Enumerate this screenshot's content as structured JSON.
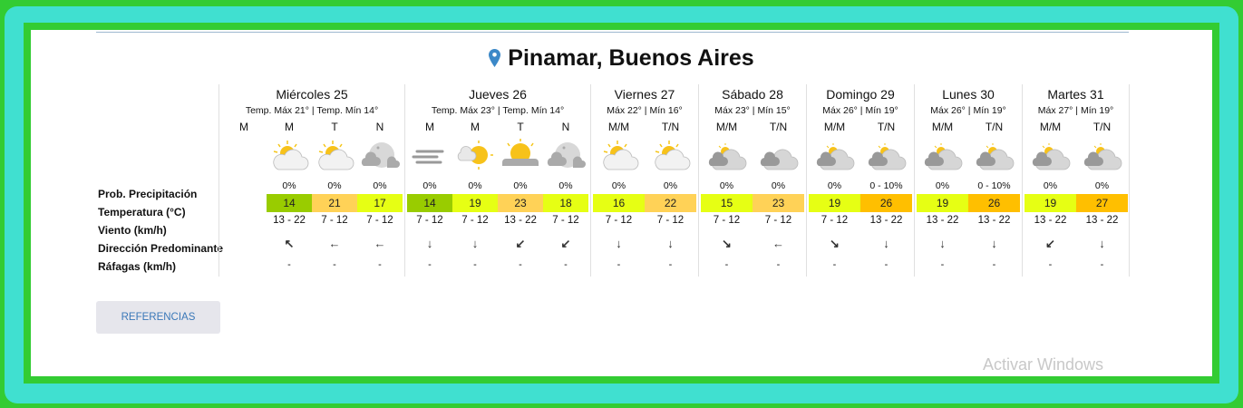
{
  "location": "Pinamar, Buenos Aires",
  "labels": {
    "precip": "Prob. Precipitación",
    "temp": "Temperatura (°C)",
    "wind": "Viento (km/h)",
    "dir": "Dirección Predominante",
    "gust": "Ráfagas (km/h)"
  },
  "colors": {
    "t14": "#99cc00",
    "t15_19": "#e6ff14",
    "t21_23": "#ffd257",
    "t26_27": "#ffbf00"
  },
  "days": [
    {
      "name": "Miércoles 25",
      "sub": "Temp. Máx 21° | Temp. Mín 14°",
      "slots": [
        {
          "period": "M"
        },
        {
          "period": "M",
          "icon": "partly-cloudy-day",
          "precip": "0%",
          "temp": "14",
          "wind": "13 - 22",
          "dir": "↖",
          "gust": "-"
        },
        {
          "period": "T",
          "icon": "partly-cloudy-day",
          "precip": "0%",
          "temp": "21",
          "wind": "7 - 12",
          "dir": "←",
          "gust": "-"
        },
        {
          "period": "N",
          "icon": "cloudy-night",
          "precip": "0%",
          "temp": "17",
          "wind": "7 - 12",
          "dir": "←",
          "gust": "-"
        }
      ]
    },
    {
      "name": "Jueves 26",
      "sub": "Temp. Máx 23° | Temp. Mín 14°",
      "slots": [
        {
          "period": "M",
          "icon": "fog",
          "precip": "0%",
          "temp": "14",
          "wind": "7 - 12",
          "dir": "↓",
          "gust": "-"
        },
        {
          "period": "M",
          "icon": "sunny-cloud",
          "precip": "0%",
          "temp": "19",
          "wind": "7 - 12",
          "dir": "↓",
          "gust": "-"
        },
        {
          "period": "T",
          "icon": "sunny-dark-cloud",
          "precip": "0%",
          "temp": "23",
          "wind": "13 - 22",
          "dir": "↙",
          "gust": "-"
        },
        {
          "period": "N",
          "icon": "cloudy-night",
          "precip": "0%",
          "temp": "18",
          "wind": "7 - 12",
          "dir": "↙",
          "gust": "-"
        }
      ]
    },
    {
      "name": "Viernes 27",
      "sub": "Máx 22° | Mín 16°",
      "slots": [
        {
          "period": "M/M",
          "icon": "partly-cloudy-day",
          "precip": "0%",
          "temp": "16",
          "wind": "7 - 12",
          "dir": "↓",
          "gust": "-"
        },
        {
          "period": "T/N",
          "icon": "partly-cloudy-day",
          "precip": "0%",
          "temp": "22",
          "wind": "7 - 12",
          "dir": "↓",
          "gust": "-"
        }
      ]
    },
    {
      "name": "Sábado 28",
      "sub": "Máx 23° | Mín 15°",
      "slots": [
        {
          "period": "M/M",
          "icon": "mostly-cloudy-day",
          "precip": "0%",
          "temp": "15",
          "wind": "7 - 12",
          "dir": "↘",
          "gust": "-"
        },
        {
          "period": "T/N",
          "icon": "cloudy",
          "precip": "0%",
          "temp": "23",
          "wind": "7 - 12",
          "dir": "←",
          "gust": "-"
        }
      ]
    },
    {
      "name": "Domingo 29",
      "sub": "Máx 26° | Mín 19°",
      "slots": [
        {
          "period": "M/M",
          "icon": "mostly-cloudy-day",
          "precip": "0%",
          "temp": "19",
          "wind": "7 - 12",
          "dir": "↘",
          "gust": "-"
        },
        {
          "period": "T/N",
          "icon": "mostly-cloudy-day",
          "precip": "0 - 10%",
          "temp": "26",
          "wind": "13 - 22",
          "dir": "↓",
          "gust": "-"
        }
      ]
    },
    {
      "name": "Lunes 30",
      "sub": "Máx 26° | Mín 19°",
      "slots": [
        {
          "period": "M/M",
          "icon": "mostly-cloudy-day",
          "precip": "0%",
          "temp": "19",
          "wind": "13 - 22",
          "dir": "↓",
          "gust": "-"
        },
        {
          "period": "T/N",
          "icon": "mostly-cloudy-day",
          "precip": "0 - 10%",
          "temp": "26",
          "wind": "13 - 22",
          "dir": "↓",
          "gust": "-"
        }
      ]
    },
    {
      "name": "Martes 31",
      "sub": "Máx 27° | Mín 19°",
      "slots": [
        {
          "period": "M/M",
          "icon": "mostly-cloudy-day",
          "precip": "0%",
          "temp": "19",
          "wind": "13 - 22",
          "dir": "↙",
          "gust": "-"
        },
        {
          "period": "T/N",
          "icon": "mostly-cloudy-day",
          "precip": "0%",
          "temp": "27",
          "wind": "13 - 22",
          "dir": "↓",
          "gust": "-"
        }
      ]
    }
  ],
  "button": "REFERENCIAS",
  "watermark": "Activar Windows"
}
